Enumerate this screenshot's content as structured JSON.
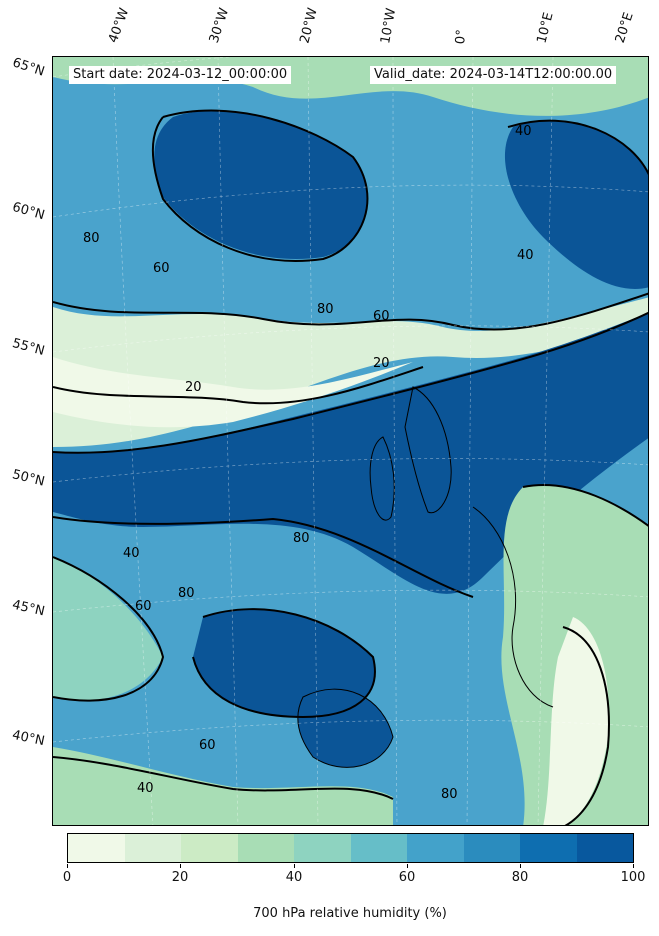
{
  "header": {
    "start_date": "Start date: 2024-03-12_00:00:00",
    "valid_date": "Valid_date: 2024-03-14T12:00:00.00"
  },
  "longitude_labels": [
    "40°W",
    "30°W",
    "20°W",
    "10°W",
    "0°",
    "10°E",
    "20°E"
  ],
  "latitude_labels": [
    "65°N",
    "60°N",
    "55°N",
    "50°N",
    "45°N",
    "40°N"
  ],
  "contour_labels": [
    "20",
    "40",
    "60",
    "80"
  ],
  "colorbar": {
    "label": "700 hPa relative humidity (%)",
    "ticks": [
      "0",
      "20",
      "40",
      "60",
      "80",
      "100"
    ],
    "colors": [
      "#f0f9e8",
      "#dbf0d8",
      "#ccebc5",
      "#a8ddb5",
      "#8ed3c0",
      "#66bec8",
      "#43a2ca",
      "#2b8cbe",
      "#0e6eb0",
      "#08589e"
    ]
  },
  "palette": {
    "dry": "#e8f5de",
    "moist": "#a8ddb5",
    "wet": "#4aa3cc",
    "saturated": "#0b5597",
    "contour": "#000000"
  }
}
